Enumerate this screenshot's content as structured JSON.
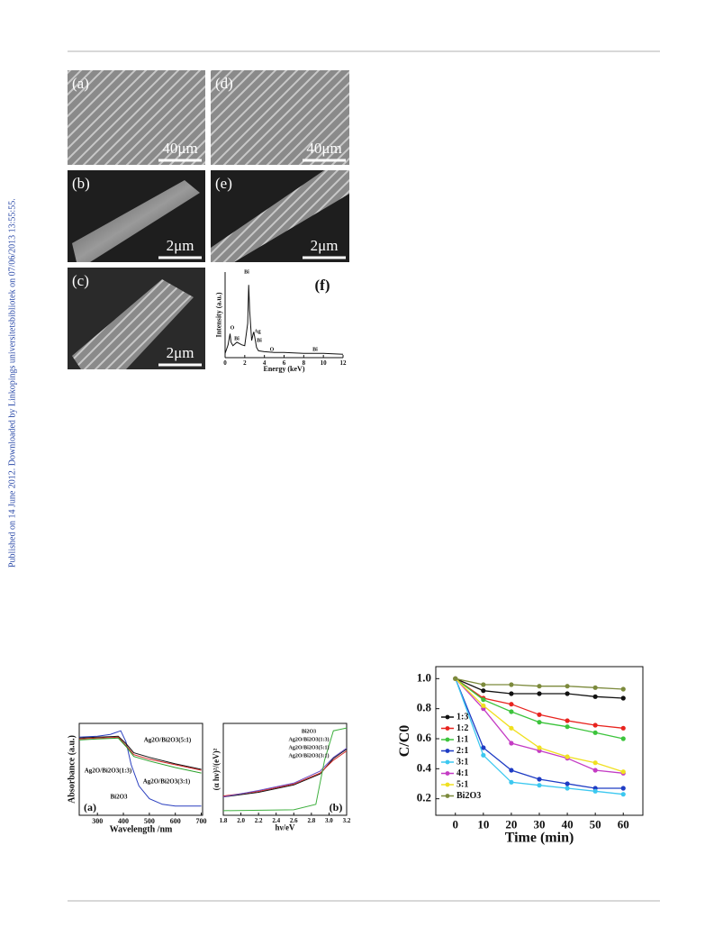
{
  "side_note": "Published on 14 June 2012. Downloaded by Linkopings universitetsbibliotek on 07/06/2013 13:55:55.",
  "figure1": {
    "panels": [
      {
        "label": "(a)",
        "scale": "40μm"
      },
      {
        "label": "(d)",
        "scale": "40μm"
      },
      {
        "label": "(b)",
        "scale": "2μm"
      },
      {
        "label": "(e)",
        "scale": "2μm"
      },
      {
        "label": "(c)",
        "scale": "2μm"
      }
    ]
  },
  "chart_data": [
    {
      "type": "line",
      "panel_label": "(f)",
      "xlabel": "Energy (keV)",
      "ylabel": "Intensity (a.u.)",
      "xlim": [
        0,
        12
      ],
      "xticks": [
        0,
        2,
        4,
        6,
        8,
        10,
        12
      ],
      "ylim": [
        0,
        100
      ],
      "series": [
        {
          "color": "#111111",
          "x": [
            0,
            0.3,
            0.5,
            0.6,
            0.8,
            1.2,
            1.7,
            2.0,
            2.3,
            2.4,
            2.5,
            2.7,
            2.9,
            3.0,
            3.2,
            3.4,
            4,
            5,
            6,
            8,
            10,
            12
          ],
          "values": [
            5,
            15,
            28,
            18,
            14,
            18,
            15,
            14,
            40,
            85,
            55,
            20,
            30,
            25,
            12,
            8,
            7,
            6,
            6,
            5,
            5,
            4
          ]
        }
      ],
      "annotations": [
        "O",
        "Bi",
        "Bi",
        "Ag",
        "Bi",
        "O",
        "Bi"
      ]
    },
    {
      "type": "line",
      "panel_label": "(a)",
      "xlabel": "Wavelength /nm",
      "ylabel": "Absorbance (a.u.)",
      "xlim": [
        230,
        705
      ],
      "xticks": [
        300,
        400,
        500,
        600,
        700
      ],
      "ylim": [
        0,
        1
      ],
      "series": [
        {
          "color": "#2a3fbf",
          "x": [
            230,
            300,
            350,
            390,
            410,
            430,
            460,
            500,
            550,
            600,
            700
          ],
          "values": [
            0.85,
            0.86,
            0.88,
            0.92,
            0.8,
            0.55,
            0.32,
            0.18,
            0.12,
            0.1,
            0.1
          ]
        },
        {
          "color": "#111111",
          "x": [
            230,
            300,
            380,
            410,
            440,
            500,
            600,
            700
          ],
          "values": [
            0.84,
            0.85,
            0.86,
            0.78,
            0.68,
            0.63,
            0.56,
            0.5
          ]
        },
        {
          "color": "#d42a2a",
          "x": [
            230,
            300,
            380,
            410,
            440,
            500,
            600,
            700
          ],
          "values": [
            0.83,
            0.84,
            0.85,
            0.76,
            0.66,
            0.61,
            0.55,
            0.49
          ]
        },
        {
          "color": "#2aa02a",
          "x": [
            230,
            300,
            380,
            410,
            440,
            500,
            600,
            700
          ],
          "values": [
            0.82,
            0.83,
            0.84,
            0.75,
            0.64,
            0.59,
            0.52,
            0.46
          ]
        }
      ],
      "annotations": [
        "Ag2O/Bi2O3(5:1)",
        "Ag2O/Bi2O3(1:3)",
        "Ag2O/Bi2O3(3:1)",
        "Bi2O3"
      ]
    },
    {
      "type": "line",
      "panel_label": "(b)",
      "xlabel": "hν/eV",
      "ylabel": "(α hν)²/(eV)²",
      "xlim": [
        1.8,
        3.2
      ],
      "xticks": [
        1.8,
        {
          "value": 2,
          "label": "2.0"
        },
        2.2,
        2.4,
        2.6,
        2.8,
        {
          "value": 3,
          "label": "3.0"
        },
        3.2
      ],
      "ylim": [
        0,
        1
      ],
      "series": [
        {
          "color": "#111111",
          "x": [
            1.8,
            2.2,
            2.6,
            2.9,
            3.05,
            3.2
          ],
          "values": [
            0.2,
            0.25,
            0.33,
            0.45,
            0.62,
            0.72
          ]
        },
        {
          "color": "#d42a2a",
          "x": [
            1.8,
            2.2,
            2.6,
            2.9,
            3.05,
            3.2
          ],
          "values": [
            0.21,
            0.26,
            0.34,
            0.46,
            0.6,
            0.7
          ]
        },
        {
          "color": "#6a4fc4",
          "x": [
            1.8,
            2.2,
            2.6,
            2.9,
            3.05,
            3.2
          ],
          "values": [
            0.2,
            0.27,
            0.35,
            0.48,
            0.63,
            0.73
          ]
        },
        {
          "color": "#3fb03f",
          "x": [
            1.8,
            2.6,
            2.85,
            2.95,
            3.05,
            3.2
          ],
          "values": [
            0.05,
            0.06,
            0.12,
            0.6,
            0.92,
            0.95
          ]
        }
      ],
      "annotations": [
        "Bi2O3",
        "Ag2O/Bi2O3(1:3)",
        "Ag2O/Bi2O3(5:1)",
        "Ag2O/Bi2O3(3:1)"
      ]
    },
    {
      "type": "line",
      "xlabel": "Time (min)",
      "ylabel": "C/C0",
      "legend": "left",
      "x": [
        0,
        10,
        20,
        30,
        40,
        50,
        60
      ],
      "xlim": [
        -7,
        67
      ],
      "xticks": [
        0,
        10,
        20,
        30,
        40,
        50,
        60
      ],
      "ylim": [
        0.09,
        1.08
      ],
      "yticks": [
        0.2,
        0.4,
        0.6,
        0.8,
        {
          "value": 1,
          "label": "1.0"
        }
      ],
      "series": [
        {
          "name": "1:3",
          "color": "#111111",
          "values": [
            1.0,
            0.92,
            0.9,
            0.9,
            0.9,
            0.88,
            0.87
          ]
        },
        {
          "name": "1:2",
          "color": "#e8241f",
          "values": [
            1.0,
            0.87,
            0.83,
            0.76,
            0.72,
            0.69,
            0.67
          ]
        },
        {
          "name": "1:1",
          "color": "#3cc43c",
          "values": [
            1.0,
            0.86,
            0.78,
            0.71,
            0.68,
            0.64,
            0.6
          ]
        },
        {
          "name": "2:1",
          "color": "#1f3cc4",
          "values": [
            1.0,
            0.54,
            0.39,
            0.33,
            0.3,
            0.27,
            0.27
          ]
        },
        {
          "name": "3:1",
          "color": "#3cc8f0",
          "values": [
            1.0,
            0.49,
            0.31,
            0.29,
            0.27,
            0.25,
            0.23
          ]
        },
        {
          "name": "4:1",
          "color": "#c43cc4",
          "values": [
            1.0,
            0.8,
            0.57,
            0.52,
            0.47,
            0.39,
            0.37
          ]
        },
        {
          "name": "5:1",
          "color": "#f0e020",
          "values": [
            1.0,
            0.82,
            0.67,
            0.54,
            0.48,
            0.44,
            0.38
          ]
        },
        {
          "name": "Bi2O3",
          "color": "#7c8a3c",
          "values": [
            1.0,
            0.96,
            0.96,
            0.95,
            0.95,
            0.94,
            0.93
          ]
        }
      ]
    }
  ]
}
